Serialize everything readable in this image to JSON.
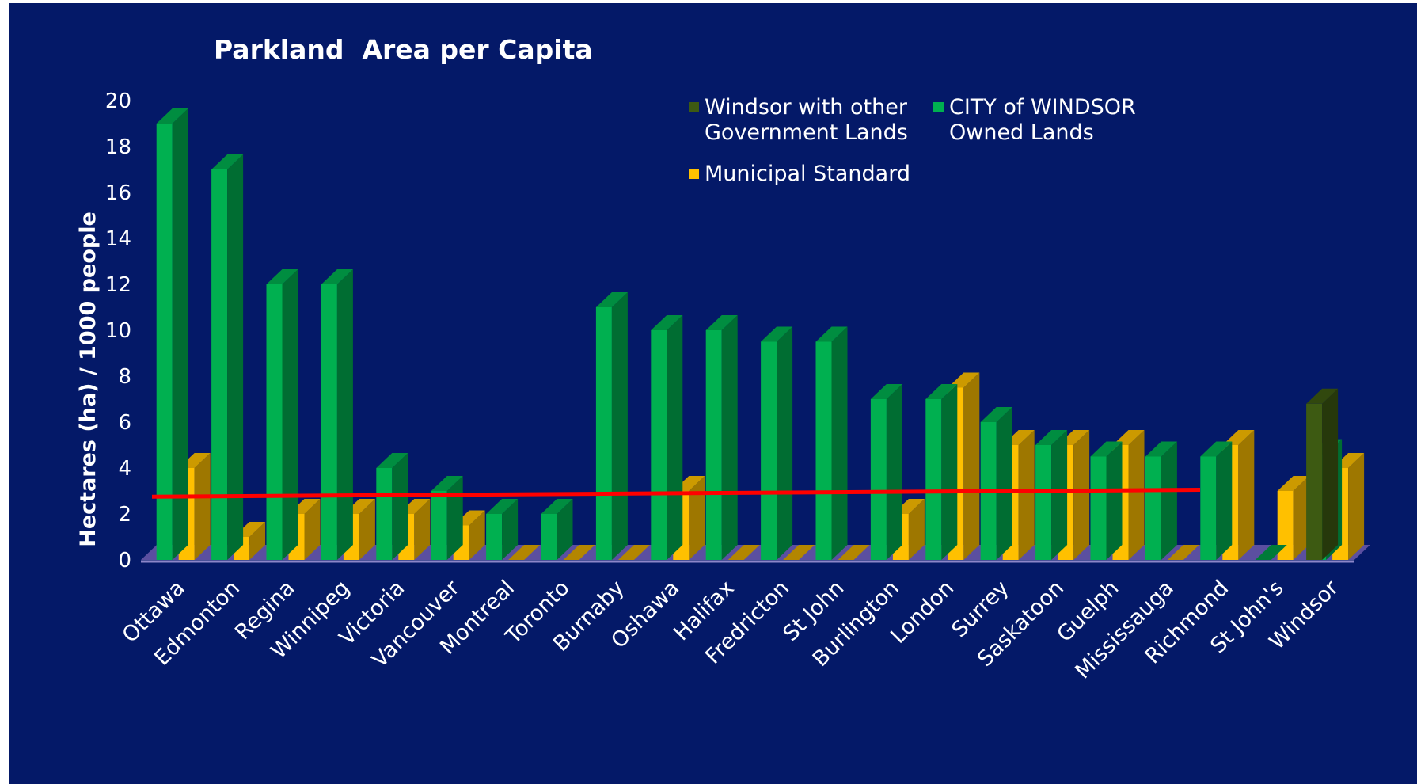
{
  "chart_data": {
    "type": "bar",
    "title": "Parkland  Area per Capita",
    "ylabel": "Hectares (ha) / 1000 people",
    "xlabel": "",
    "ylim": [
      0,
      20
    ],
    "yticks": [
      0,
      2,
      4,
      6,
      8,
      10,
      12,
      14,
      16,
      18,
      20
    ],
    "categories": [
      "Ottawa",
      "Edmonton",
      "Regina",
      "Winnipeg",
      "Victoria",
      "Vancouver",
      "Montreal",
      "Toronto",
      "Burnaby",
      "Oshawa",
      "Halifax",
      "Fredricton",
      "St John",
      "Burlington",
      "London",
      "Surrey",
      "Saskatoon",
      "Guelph",
      "Mississauga",
      "Richmond",
      "St John's",
      "Windsor"
    ],
    "series": [
      {
        "name": "Windsor with other Government Lands",
        "name_lines": [
          "Windsor with other",
          "Government Lands"
        ],
        "color": "#3d5a12",
        "values": [
          null,
          null,
          null,
          null,
          null,
          null,
          null,
          null,
          null,
          null,
          null,
          null,
          null,
          null,
          null,
          null,
          null,
          null,
          null,
          null,
          null,
          6.8
        ]
      },
      {
        "name": "CITY of WINDSOR Owned Lands",
        "name_lines": [
          "CITY of WINDSOR",
          "Owned Lands"
        ],
        "color": "#00b050",
        "values": [
          19,
          17,
          12,
          12,
          4,
          3,
          2,
          2,
          11,
          10,
          10,
          9.5,
          9.5,
          7,
          7,
          6,
          5,
          4.5,
          4.5,
          4.5,
          0,
          4.6
        ]
      },
      {
        "name": "Municipal Standard",
        "name_lines": [
          "Municipal Standard"
        ],
        "color": "#ffc000",
        "values": [
          4,
          1,
          2,
          2,
          2,
          1.5,
          0,
          0,
          0,
          3,
          0,
          0,
          0,
          2,
          7.5,
          5,
          5,
          5,
          0,
          5,
          3,
          4
        ]
      }
    ],
    "reference_line": {
      "color": "#ff0000",
      "start": 2.75,
      "end": 3.05
    },
    "legend_position": "top-right",
    "grid": false
  }
}
